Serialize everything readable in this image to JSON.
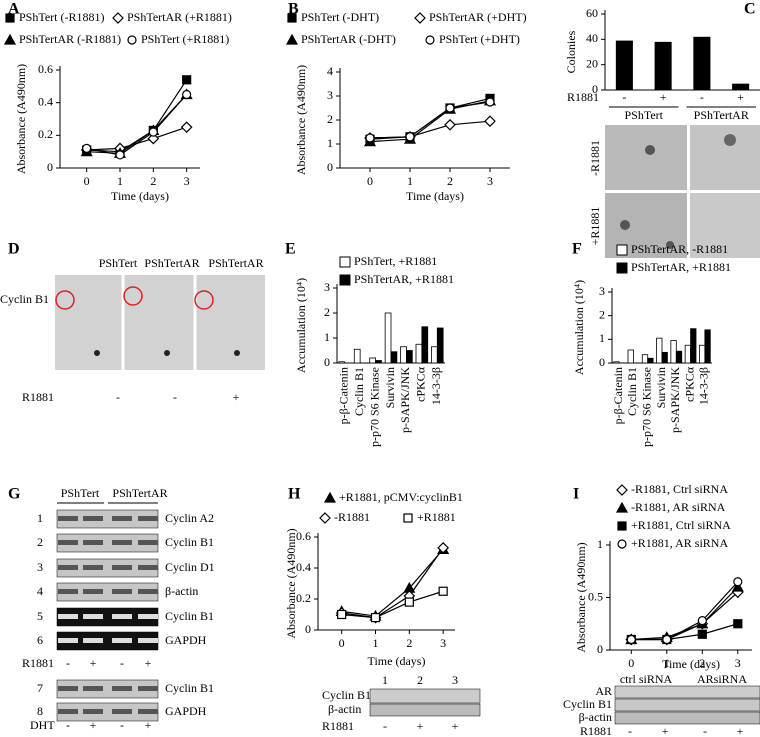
{
  "chart_data": [
    {
      "panel": "A",
      "type": "line",
      "xlabel": "Time (days)",
      "ylabel": "Absorbance (A490nm)",
      "x": [
        0,
        1,
        2,
        3
      ],
      "xlim": [
        -0.8,
        3.4
      ],
      "xticks": [
        0,
        1,
        2,
        3
      ],
      "ylim": [
        0,
        0.6
      ],
      "yticks": [
        0,
        0.2,
        0.4,
        0.6
      ],
      "series": [
        {
          "name": "PShTert (-R1881)",
          "marker": "square",
          "filled": true,
          "color": "#000",
          "values": [
            0.11,
            0.1,
            0.23,
            0.54
          ]
        },
        {
          "name": "PShTertAR (+R1881)",
          "marker": "diamond",
          "filled": false,
          "color": "#000",
          "values": [
            0.11,
            0.12,
            0.18,
            0.25
          ]
        },
        {
          "name": "PShTertAR (-R1881)",
          "marker": "triangle",
          "filled": true,
          "color": "#000",
          "values": [
            0.1,
            0.09,
            0.23,
            0.45
          ]
        },
        {
          "name": "PShTert (+R1881)",
          "marker": "circle",
          "filled": false,
          "color": "#000",
          "values": [
            0.12,
            0.08,
            0.22,
            0.45
          ]
        }
      ]
    },
    {
      "panel": "B",
      "type": "line",
      "xlabel": "Time (days)",
      "ylabel": "Absorbance (A490nm)",
      "x": [
        0,
        1,
        2,
        3
      ],
      "xlim": [
        -0.75,
        3.5
      ],
      "xticks": [
        0,
        1,
        2,
        3
      ],
      "ylim": [
        0,
        4
      ],
      "yticks": [
        0,
        1,
        2,
        3,
        4
      ],
      "series": [
        {
          "name": "PShTert (-DHT)",
          "marker": "square",
          "filled": true,
          "color": "#000",
          "values": [
            1.2,
            1.3,
            2.5,
            2.9
          ]
        },
        {
          "name": "PShTertAR (+DHT)",
          "marker": "diamond",
          "filled": false,
          "color": "#000",
          "values": [
            1.25,
            1.3,
            1.8,
            1.95
          ]
        },
        {
          "name": "PShTertAR (-DHT)",
          "marker": "triangle",
          "filled": true,
          "color": "#000",
          "values": [
            1.1,
            1.2,
            2.45,
            2.8
          ]
        },
        {
          "name": "PShTert (+DHT)",
          "marker": "circle",
          "filled": false,
          "color": "#000",
          "values": [
            1.25,
            1.3,
            2.5,
            2.75
          ]
        }
      ]
    },
    {
      "panel": "C",
      "type": "bar",
      "ylabel": "Colonies",
      "categories": [
        "-",
        "+",
        "-",
        "+"
      ],
      "values": [
        39,
        38,
        42,
        5
      ],
      "color": "#000",
      "ylim": [
        0,
        60
      ],
      "yticks": [
        0,
        20,
        40,
        60
      ],
      "row_label": "R1881",
      "groups": [
        "PShTert",
        "PShTertAR"
      ],
      "image_rows": [
        "-R1881",
        "+R1881"
      ]
    },
    {
      "panel": "E",
      "type": "grouped-bar",
      "ylabel": "Accumulation (10⁴)",
      "categories": [
        "p-β-Catenin",
        "Cyclin B1",
        "p-p70 S6 Kinase",
        "Survivin",
        "p-SAPK/JNK",
        "cPKCα",
        "14-3-3β"
      ],
      "ylim": [
        0,
        3
      ],
      "yticks": [
        0,
        1,
        2,
        3
      ],
      "series": [
        {
          "name": "PShTert, +R1881",
          "color": "#fff",
          "values": [
            0.05,
            0.55,
            0.2,
            2.0,
            0.65,
            0.75,
            0.65
          ]
        },
        {
          "name": "PShTertAR, +R1881",
          "color": "#000",
          "values": [
            0,
            0,
            0.1,
            0.45,
            0.5,
            1.45,
            1.4
          ]
        }
      ]
    },
    {
      "panel": "F",
      "type": "grouped-bar",
      "ylabel": "Accumulation (10⁴)",
      "categories": [
        "p-β-Catenin",
        "Cyclin B1",
        "p-p70 S6 Kinase",
        "Survivin",
        "p-SAPK/JNK",
        "cPKCα",
        "14-3-3β"
      ],
      "ylim": [
        0,
        3
      ],
      "yticks": [
        0,
        1,
        2,
        3
      ],
      "series": [
        {
          "name": "PShTertAR, -R1881",
          "color": "#fff",
          "values": [
            0.05,
            0.55,
            0.35,
            1.05,
            0.95,
            0.75,
            0.75
          ]
        },
        {
          "name": "PShTertAR, +R1881",
          "color": "#000",
          "values": [
            0,
            0,
            0.2,
            0.45,
            0.5,
            1.45,
            1.4
          ]
        }
      ]
    },
    {
      "panel": "H",
      "type": "line",
      "xlabel": "Time (days)",
      "ylabel": "Absorbance (A490nm)",
      "x": [
        0,
        1,
        2,
        3
      ],
      "xlim": [
        -0.7,
        3.35
      ],
      "xticks": [
        0,
        1,
        2,
        3
      ],
      "ylim": [
        0,
        0.6
      ],
      "yticks": [
        0,
        0.2,
        0.4,
        0.6
      ],
      "series": [
        {
          "name": "+R1881, pCMV:cyclinB1",
          "marker": "triangle",
          "filled": true,
          "color": "#000",
          "values": [
            0.12,
            0.09,
            0.27,
            0.52
          ]
        },
        {
          "name": "-R1881",
          "marker": "diamond",
          "filled": false,
          "color": "#000",
          "values": [
            0.11,
            0.08,
            0.22,
            0.53
          ]
        },
        {
          "name": "+R1881",
          "marker": "square",
          "filled": false,
          "color": "#000",
          "values": [
            0.1,
            0.08,
            0.18,
            0.25
          ]
        }
      ]
    },
    {
      "panel": "I",
      "type": "line",
      "xlabel": "Time (days)",
      "ylabel": "Absorbance (A490nm)",
      "x": [
        0,
        1,
        2,
        3
      ],
      "xlim": [
        -0.6,
        3.4
      ],
      "xticks": [
        0,
        1,
        2,
        3
      ],
      "ylim": [
        0,
        1
      ],
      "yticks": [
        0,
        0.5,
        1
      ],
      "series": [
        {
          "name": "-R1881, Ctrl siRNA",
          "marker": "diamond",
          "filled": false,
          "color": "#000",
          "values": [
            0.1,
            0.1,
            0.25,
            0.55
          ]
        },
        {
          "name": "-R1881, AR siRNA",
          "marker": "triangle",
          "filled": true,
          "color": "#000",
          "values": [
            0.1,
            0.12,
            0.25,
            0.6
          ]
        },
        {
          "name": "+R1881, Ctrl siRNA",
          "marker": "square",
          "filled": true,
          "color": "#000",
          "values": [
            0.1,
            0.1,
            0.15,
            0.25
          ]
        },
        {
          "name": "+R1881, AR siRNA",
          "marker": "circle",
          "filled": false,
          "color": "#000",
          "values": [
            0.1,
            0.1,
            0.28,
            0.65
          ]
        }
      ]
    }
  ],
  "blots": {
    "D": {
      "panel": "D",
      "columns": [
        "PShTert",
        "PShTertAR",
        "PShTertAR"
      ],
      "row_label": "Cyclin B1",
      "treatment_label": "R1881",
      "treatment": [
        "-",
        "-",
        "+"
      ]
    },
    "G": {
      "panel": "G",
      "groups": [
        "PShTert",
        "PShTertAR"
      ],
      "rows": [
        [
          "1",
          "Cyclin A2"
        ],
        [
          "2",
          "Cyclin B1"
        ],
        [
          "3",
          "Cyclin D1"
        ],
        [
          "4",
          "β-actin"
        ],
        [
          "5",
          "Cyclin B1"
        ],
        [
          "6",
          "GAPDH"
        ],
        [
          "7",
          "Cyclin B1"
        ],
        [
          "8",
          "GAPDH"
        ]
      ],
      "treatment_label_1": "R1881",
      "treatment_1": [
        "-",
        "+",
        "-",
        "+"
      ],
      "treatment_label_2": "DHT",
      "treatment_2": [
        "-",
        "+",
        "-",
        "+"
      ]
    },
    "H": {
      "lanes": [
        "1",
        "2",
        "3"
      ],
      "rows": [
        "Cyclin B1",
        "β-actin"
      ],
      "treatment_label": "R1881",
      "treatment": [
        "-",
        "+",
        "+"
      ]
    },
    "I": {
      "groups": [
        "ctrl siRNA",
        "ARsiRNA"
      ],
      "rows": [
        "AR",
        "Cyclin B1",
        "β-actin"
      ],
      "treatment_label": "R1881",
      "treatment": [
        "-",
        "+",
        "-",
        "+"
      ]
    }
  }
}
